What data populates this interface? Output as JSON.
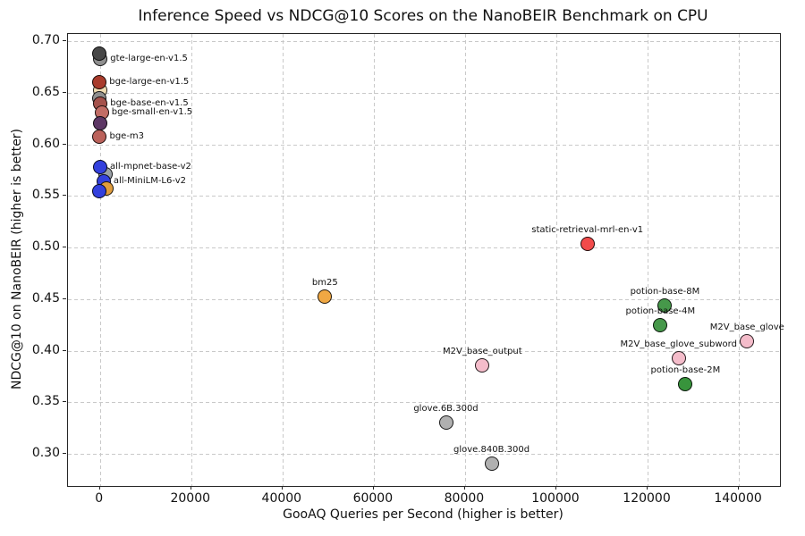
{
  "chart_data": {
    "type": "scatter",
    "title": "Inference Speed vs NDCG@10 Scores on the NanoBEIR Benchmark on CPU",
    "xlabel": "GooAQ Queries per Second (higher is better)",
    "ylabel": "NDCG@10 on NanoBEIR (higher is better)",
    "xlim": [
      -7000,
      149000
    ],
    "ylim": [
      0.269,
      0.707
    ],
    "grid": true,
    "grid_style": "dashed",
    "legend_position": "none",
    "xticks": [
      {
        "v": 0,
        "label": "0"
      },
      {
        "v": 20000,
        "label": "20000"
      },
      {
        "v": 40000,
        "label": "40000"
      },
      {
        "v": 60000,
        "label": "60000"
      },
      {
        "v": 80000,
        "label": "80000"
      },
      {
        "v": 100000,
        "label": "100000"
      },
      {
        "v": 120000,
        "label": "120000"
      },
      {
        "v": 140000,
        "label": "140000"
      }
    ],
    "yticks": [
      {
        "v": 0.3,
        "label": "0.30"
      },
      {
        "v": 0.35,
        "label": "0.35"
      },
      {
        "v": 0.4,
        "label": "0.40"
      },
      {
        "v": 0.45,
        "label": "0.45"
      },
      {
        "v": 0.5,
        "label": "0.50"
      },
      {
        "v": 0.55,
        "label": "0.55"
      },
      {
        "v": 0.6,
        "label": "0.60"
      },
      {
        "v": 0.65,
        "label": "0.65"
      },
      {
        "v": 0.7,
        "label": "0.70"
      }
    ],
    "points": [
      {
        "label": "gte-large-en-v1.5",
        "x": 300,
        "y": 0.682,
        "color": "#8f8f8f",
        "label_pos": "right"
      },
      {
        "label": "",
        "x": 100,
        "y": 0.687,
        "color": "#474747",
        "label_pos": null
      },
      {
        "label": "",
        "x": 300,
        "y": 0.652,
        "color": "#efdcb2",
        "label_pos": null
      },
      {
        "label": "bge-large-en-v1.5",
        "x": 100,
        "y": 0.659,
        "color": "#a93c2c",
        "label_pos": "right"
      },
      {
        "label": "",
        "x": 100,
        "y": 0.644,
        "color": "#8f8f8f",
        "label_pos": null
      },
      {
        "label": "bge-base-en-v1.5",
        "x": 300,
        "y": 0.639,
        "color": "#a5524c",
        "label_pos": "right"
      },
      {
        "label": "bge-small-en-v1.5",
        "x": 600,
        "y": 0.63,
        "color": "#c26d66",
        "label_pos": "right"
      },
      {
        "label": "",
        "x": 200,
        "y": 0.62,
        "color": "#5d3765",
        "label_pos": null
      },
      {
        "label": "bge-m3",
        "x": 150,
        "y": 0.607,
        "color": "#bb625b",
        "label_pos": "right"
      },
      {
        "label": "",
        "x": 1400,
        "y": 0.57,
        "color": "#9aa0a6",
        "label_pos": null
      },
      {
        "label": "all-mpnet-base-v2",
        "x": 250,
        "y": 0.577,
        "color": "#3340dd",
        "label_pos": "right"
      },
      {
        "label": "all-MiniLM-L6-v2",
        "x": 1000,
        "y": 0.563,
        "color": "#3340dd",
        "label_pos": "right"
      },
      {
        "label": "",
        "x": 1700,
        "y": 0.556,
        "color": "#df9c3d",
        "label_pos": null
      },
      {
        "label": "",
        "x": 100,
        "y": 0.554,
        "color": "#3340dd",
        "label_pos": null
      },
      {
        "label": "bm25",
        "x": 49500,
        "y": 0.452,
        "color": "#f0a843",
        "label_pos": "above"
      },
      {
        "label": "static-retrieval-mrl-en-v1",
        "x": 107000,
        "y": 0.503,
        "color": "#f24b4b",
        "label_pos": "above"
      },
      {
        "label": "potion-base-8M",
        "x": 124000,
        "y": 0.443,
        "color": "#46984a",
        "label_pos": "above"
      },
      {
        "label": "potion-base-4M",
        "x": 123000,
        "y": 0.424,
        "color": "#46984a",
        "label_pos": "above"
      },
      {
        "label": "M2V_base_glove",
        "x": 142000,
        "y": 0.408,
        "color": "#f4bcca",
        "label_pos": "above"
      },
      {
        "label": "M2V_base_glove_subword",
        "x": 127000,
        "y": 0.392,
        "color": "#f4bcca",
        "label_pos": "above"
      },
      {
        "label": "M2V_base_output",
        "x": 84000,
        "y": 0.385,
        "color": "#f4bcca",
        "label_pos": "above"
      },
      {
        "label": "potion-base-2M",
        "x": 128500,
        "y": 0.367,
        "color": "#38943c",
        "label_pos": "above"
      },
      {
        "label": "glove.6B.300d",
        "x": 76000,
        "y": 0.33,
        "color": "#b0b0b0",
        "label_pos": "above"
      },
      {
        "label": "glove.840B.300d",
        "x": 86000,
        "y": 0.29,
        "color": "#b0b0b0",
        "label_pos": "above"
      }
    ]
  }
}
